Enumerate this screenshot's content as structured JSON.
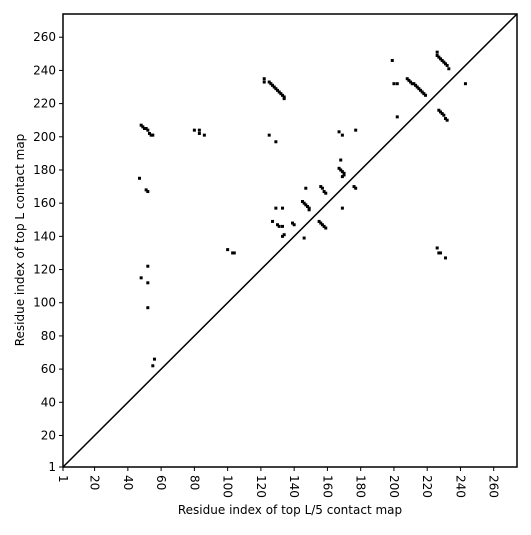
{
  "chart_data": {
    "type": "scatter",
    "xlabel": "Residue index of top L/5 contact map",
    "ylabel": "Residue index of top L contact map",
    "xlim": [
      1,
      274
    ],
    "ylim": [
      1,
      274
    ],
    "xticks": [
      1,
      20,
      40,
      60,
      80,
      100,
      120,
      140,
      160,
      180,
      200,
      220,
      240,
      260
    ],
    "yticks": [
      1,
      20,
      40,
      60,
      80,
      100,
      120,
      140,
      160,
      180,
      200,
      220,
      240,
      260
    ],
    "color": "#000000",
    "x": [
      48,
      49,
      50,
      51,
      52,
      53,
      54,
      55,
      47,
      52,
      51,
      48,
      52,
      52,
      52,
      55,
      56,
      80,
      83,
      83,
      86,
      100,
      103,
      104,
      122,
      122,
      125,
      126,
      127,
      128,
      129,
      130,
      131,
      132,
      133,
      134,
      134,
      125,
      129,
      127,
      129,
      130,
      131,
      133,
      133,
      133,
      134,
      140,
      139,
      146,
      145,
      146,
      147,
      148,
      149,
      149,
      147,
      155,
      156,
      157,
      158,
      159,
      156,
      157,
      158,
      159,
      167,
      168,
      169,
      170,
      170,
      169,
      168,
      169,
      167,
      169,
      176,
      177,
      177,
      199,
      200,
      202,
      202,
      208,
      209,
      210,
      211,
      212,
      213,
      214,
      215,
      216,
      217,
      218,
      219,
      226,
      226,
      227,
      228,
      229,
      230,
      231,
      232,
      233,
      227,
      228,
      229,
      230,
      231,
      232,
      226,
      227,
      228,
      231,
      243
    ],
    "y": [
      207,
      206,
      205,
      205,
      204,
      202,
      201,
      201,
      175,
      167,
      168,
      115,
      122,
      112,
      97,
      62,
      66,
      204,
      204,
      202,
      201,
      132,
      130,
      130,
      235,
      233,
      233,
      232,
      231,
      230,
      229,
      228,
      227,
      226,
      225,
      224,
      223,
      201,
      197,
      149,
      157,
      147,
      146,
      157,
      146,
      140,
      141,
      147,
      148,
      139,
      161,
      160,
      159,
      158,
      157,
      156,
      169,
      149,
      148,
      147,
      146,
      145,
      170,
      169,
      167,
      166,
      181,
      180,
      179,
      178,
      177,
      176,
      186,
      157,
      203,
      201,
      170,
      169,
      204,
      246,
      232,
      232,
      212,
      235,
      234,
      233,
      232,
      232,
      231,
      230,
      229,
      228,
      227,
      226,
      225,
      251,
      249,
      248,
      247,
      246,
      245,
      244,
      243,
      241,
      216,
      215,
      214,
      213,
      211,
      210,
      133,
      130,
      130,
      127,
      232
    ]
  }
}
